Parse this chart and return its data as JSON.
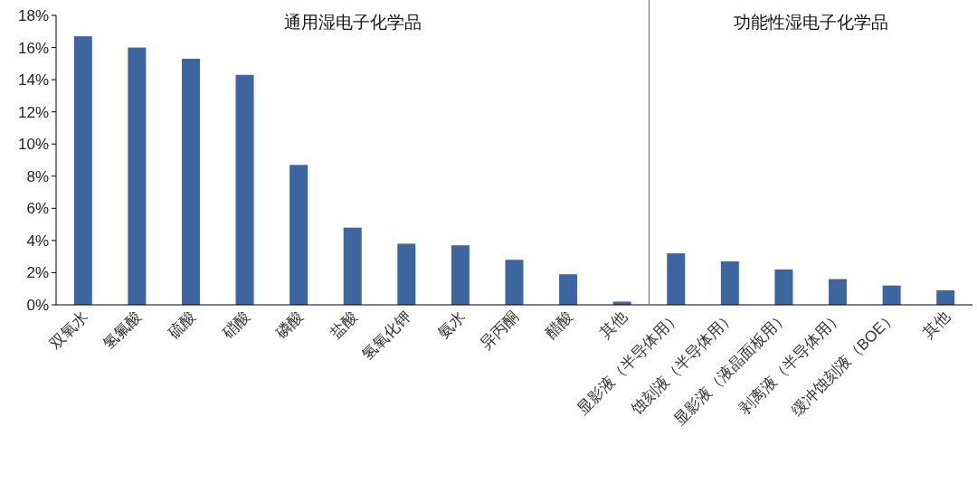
{
  "chart_data": {
    "type": "bar",
    "categories": [
      "双氧水",
      "氢氟酸",
      "硫酸",
      "硝酸",
      "磷酸",
      "盐酸",
      "氢氧化钾",
      "氨水",
      "异丙酮",
      "醋酸",
      "其他",
      "显影液（半导体用）",
      "蚀刻液（半导体用）",
      "显影液（液晶面板用）",
      "剥离液（半导体用）",
      "缓冲蚀刻液（BOE）",
      "其他"
    ],
    "values": [
      16.7,
      16.0,
      15.3,
      14.3,
      8.7,
      4.8,
      3.8,
      3.7,
      2.8,
      1.9,
      0.2,
      3.2,
      2.7,
      2.2,
      1.6,
      1.2,
      0.9
    ],
    "color": "#3d65a0",
    "ylim": [
      0,
      18
    ],
    "yticks": [
      {
        "value": 0,
        "label": "0%"
      },
      {
        "value": 2,
        "label": "2%"
      },
      {
        "value": 4,
        "label": "4%"
      },
      {
        "value": 6,
        "label": "6%"
      },
      {
        "value": 8,
        "label": "8%"
      },
      {
        "value": 10,
        "label": "10%"
      },
      {
        "value": 12,
        "label": "12%"
      },
      {
        "value": 14,
        "label": "14%"
      },
      {
        "value": 16,
        "label": "16%"
      },
      {
        "value": 18,
        "label": "18%"
      }
    ],
    "ref_lines": [
      {
        "axis": "x",
        "value": "显影液（半导体用）",
        "color": "#3d65a0"
      }
    ],
    "annotations": [
      "通用湿电子化学品",
      "功能性湿电子化学品"
    ],
    "grid": false
  }
}
